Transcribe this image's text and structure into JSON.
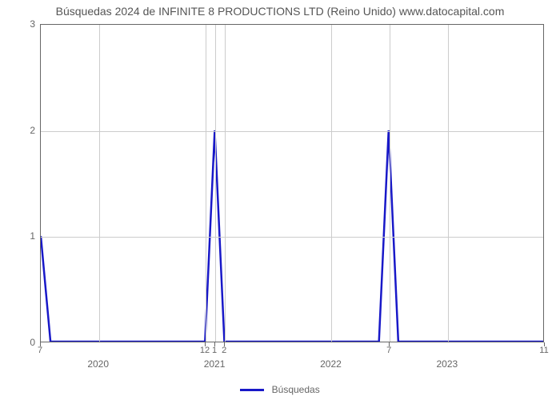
{
  "chart": {
    "type": "line",
    "title": "Búsquedas 2024 de INFINITE 8 PRODUCTIONS LTD (Reino Unido) www.datocapital.com",
    "title_fontsize": 14,
    "title_color": "#555555",
    "background_color": "#ffffff",
    "plot_border_color": "#666666",
    "grid_color": "#cccccc",
    "axis_label_color": "#666666",
    "axis_label_fontsize": 12,
    "line_color": "#1818c8",
    "line_width": 2.5,
    "ylim": [
      0,
      3
    ],
    "yticks": [
      0,
      1,
      2,
      3
    ],
    "x_domain_months": 52,
    "x_month_ticks": [
      {
        "month_index": 0,
        "label": "7"
      },
      {
        "month_index": 17,
        "label": "12"
      },
      {
        "month_index": 18,
        "label": "1"
      },
      {
        "month_index": 19,
        "label": "2"
      },
      {
        "month_index": 36,
        "label": "7"
      },
      {
        "month_index": 52,
        "label": "11"
      }
    ],
    "x_year_ticks": [
      {
        "month_index": 6,
        "label": "2020"
      },
      {
        "month_index": 18,
        "label": "2021"
      },
      {
        "month_index": 30,
        "label": "2022"
      },
      {
        "month_index": 42,
        "label": "2023"
      }
    ],
    "data_points": [
      {
        "x": 0,
        "y": 1
      },
      {
        "x": 1,
        "y": 0
      },
      {
        "x": 2,
        "y": 0
      },
      {
        "x": 3,
        "y": 0
      },
      {
        "x": 4,
        "y": 0
      },
      {
        "x": 5,
        "y": 0
      },
      {
        "x": 6,
        "y": 0
      },
      {
        "x": 7,
        "y": 0
      },
      {
        "x": 8,
        "y": 0
      },
      {
        "x": 9,
        "y": 0
      },
      {
        "x": 10,
        "y": 0
      },
      {
        "x": 11,
        "y": 0
      },
      {
        "x": 12,
        "y": 0
      },
      {
        "x": 13,
        "y": 0
      },
      {
        "x": 14,
        "y": 0
      },
      {
        "x": 15,
        "y": 0
      },
      {
        "x": 16,
        "y": 0
      },
      {
        "x": 17,
        "y": 0
      },
      {
        "x": 18,
        "y": 2
      },
      {
        "x": 19,
        "y": 0
      },
      {
        "x": 20,
        "y": 0
      },
      {
        "x": 21,
        "y": 0
      },
      {
        "x": 22,
        "y": 0
      },
      {
        "x": 23,
        "y": 0
      },
      {
        "x": 24,
        "y": 0
      },
      {
        "x": 25,
        "y": 0
      },
      {
        "x": 26,
        "y": 0
      },
      {
        "x": 27,
        "y": 0
      },
      {
        "x": 28,
        "y": 0
      },
      {
        "x": 29,
        "y": 0
      },
      {
        "x": 30,
        "y": 0
      },
      {
        "x": 31,
        "y": 0
      },
      {
        "x": 32,
        "y": 0
      },
      {
        "x": 33,
        "y": 0
      },
      {
        "x": 34,
        "y": 0
      },
      {
        "x": 35,
        "y": 0
      },
      {
        "x": 36,
        "y": 2
      },
      {
        "x": 37,
        "y": 0
      },
      {
        "x": 38,
        "y": 0
      },
      {
        "x": 39,
        "y": 0
      },
      {
        "x": 40,
        "y": 0
      },
      {
        "x": 41,
        "y": 0
      },
      {
        "x": 42,
        "y": 0
      },
      {
        "x": 43,
        "y": 0
      },
      {
        "x": 44,
        "y": 0
      },
      {
        "x": 45,
        "y": 0
      },
      {
        "x": 46,
        "y": 0
      },
      {
        "x": 47,
        "y": 0
      },
      {
        "x": 48,
        "y": 0
      },
      {
        "x": 49,
        "y": 0
      },
      {
        "x": 50,
        "y": 0
      },
      {
        "x": 51,
        "y": 0
      },
      {
        "x": 52,
        "y": 0
      }
    ],
    "legend_label": "Búsquedas",
    "legend_color": "#1818c8"
  }
}
